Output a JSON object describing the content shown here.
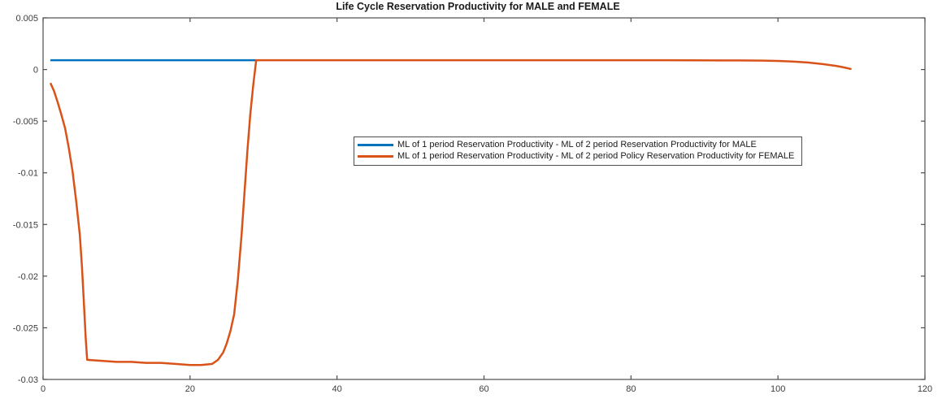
{
  "chart_data": {
    "type": "line",
    "title": "Life Cycle Reservation Productivity for MALE and FEMALE",
    "xlabel": "",
    "ylabel": "",
    "xlim": [
      0,
      120
    ],
    "ylim": [
      -0.03,
      0.005
    ],
    "xticks": [
      0,
      20,
      40,
      60,
      80,
      100,
      120
    ],
    "xtick_labels": [
      "0",
      "20",
      "40",
      "60",
      "80",
      "100",
      "120"
    ],
    "yticks": [
      0.005,
      0,
      -0.005,
      -0.01,
      -0.015,
      -0.02,
      -0.025,
      -0.03
    ],
    "ytick_labels": [
      "0.005",
      "0",
      "-0.005",
      "-0.01",
      "-0.015",
      "-0.02",
      "-0.025",
      "-0.03"
    ],
    "grid": false,
    "box": true,
    "tick_direction": "in",
    "legend_position": "inside-upper-middle",
    "axis_color": "#4d4d4d",
    "tick_label_color": "#3c3c3c",
    "series": [
      {
        "name": "ML of 1 period Reservation Productivity - ML of 2 period Reservation Productivity for MALE",
        "color": "#0072BD",
        "points": [
          [
            1,
            0.0009
          ],
          [
            29,
            0.0009
          ]
        ]
      },
      {
        "name": "ML of 1 period Reservation Productivity - ML of 2 period Policy Reservation Productivity for FEMALE",
        "color": "#D95319",
        "points": [
          [
            1,
            -0.0013
          ],
          [
            1.5,
            -0.0021
          ],
          [
            2,
            -0.0032
          ],
          [
            2.5,
            -0.0044
          ],
          [
            3,
            -0.0057
          ],
          [
            3.5,
            -0.0076
          ],
          [
            4,
            -0.0098
          ],
          [
            4.5,
            -0.0127
          ],
          [
            5,
            -0.016
          ],
          [
            5.3,
            -0.0192
          ],
          [
            5.6,
            -0.0232
          ],
          [
            5.8,
            -0.026
          ],
          [
            6,
            -0.0281
          ],
          [
            8,
            -0.0282
          ],
          [
            10,
            -0.0283
          ],
          [
            12,
            -0.0283
          ],
          [
            14,
            -0.0284
          ],
          [
            16,
            -0.0284
          ],
          [
            18,
            -0.0285
          ],
          [
            20,
            -0.0286
          ],
          [
            21.5,
            -0.0286
          ],
          [
            23,
            -0.0285
          ],
          [
            23.8,
            -0.0281
          ],
          [
            24.5,
            -0.0274
          ],
          [
            25,
            -0.0265
          ],
          [
            25.5,
            -0.0253
          ],
          [
            26,
            -0.0237
          ],
          [
            26.5,
            -0.0204
          ],
          [
            27,
            -0.0161
          ],
          [
            27.4,
            -0.012
          ],
          [
            27.8,
            -0.0079
          ],
          [
            28.2,
            -0.0043
          ],
          [
            28.6,
            -0.0015
          ],
          [
            29,
            0.0009
          ],
          [
            35,
            0.0009
          ],
          [
            50,
            0.0009
          ],
          [
            70,
            0.0009
          ],
          [
            85,
            0.0009
          ],
          [
            95,
            0.00088
          ],
          [
            98,
            0.00086
          ],
          [
            100,
            0.00083
          ],
          [
            102,
            0.00077
          ],
          [
            104,
            0.00068
          ],
          [
            106,
            0.00054
          ],
          [
            108,
            0.00034
          ],
          [
            109,
            0.0002
          ],
          [
            110,
            4e-05
          ]
        ]
      }
    ]
  }
}
